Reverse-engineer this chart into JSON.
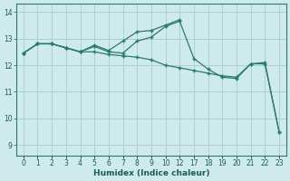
{
  "xlabel": "Humidex (Indice chaleur)",
  "bg_color": "#ceeaea",
  "grid_color": "#aed0d0",
  "line_color": "#2a7a6a",
  "ylim": [
    8.6,
    14.3
  ],
  "yticks": [
    9,
    10,
    11,
    12,
    13,
    14
  ],
  "xtick_labels": [
    "0",
    "1",
    "2",
    "3",
    "4",
    "5",
    "6",
    "7",
    "8",
    "9",
    "10",
    "12",
    "17",
    "18",
    "19",
    "20",
    "21",
    "22",
    "23"
  ],
  "lines": [
    {
      "xi": [
        0,
        1,
        2,
        3,
        4,
        5,
        6,
        7,
        8,
        9,
        10,
        11,
        12,
        13,
        14,
        15,
        16,
        17,
        18
      ],
      "y": [
        12.45,
        12.8,
        12.8,
        12.65,
        12.5,
        12.5,
        12.4,
        12.35,
        12.3,
        12.2,
        12.0,
        11.9,
        11.8,
        11.7,
        11.6,
        11.55,
        12.05,
        12.05,
        9.5
      ]
    },
    {
      "xi": [
        0,
        1,
        2,
        3,
        4,
        5,
        6,
        7,
        8,
        9,
        10,
        11,
        12,
        13,
        14,
        15,
        16,
        17,
        18
      ],
      "y": [
        12.45,
        12.8,
        12.8,
        12.65,
        12.5,
        12.7,
        12.5,
        12.45,
        12.9,
        13.05,
        13.45,
        13.65,
        12.25,
        11.85,
        11.55,
        11.5,
        12.05,
        12.1,
        9.5
      ]
    },
    {
      "xi": [
        0,
        1,
        2,
        3,
        4,
        5,
        6,
        7,
        8,
        9,
        10,
        11
      ],
      "y": [
        12.45,
        12.8,
        12.8,
        12.65,
        12.5,
        12.75,
        12.55,
        12.9,
        13.25,
        13.3,
        13.5,
        13.7
      ]
    }
  ]
}
